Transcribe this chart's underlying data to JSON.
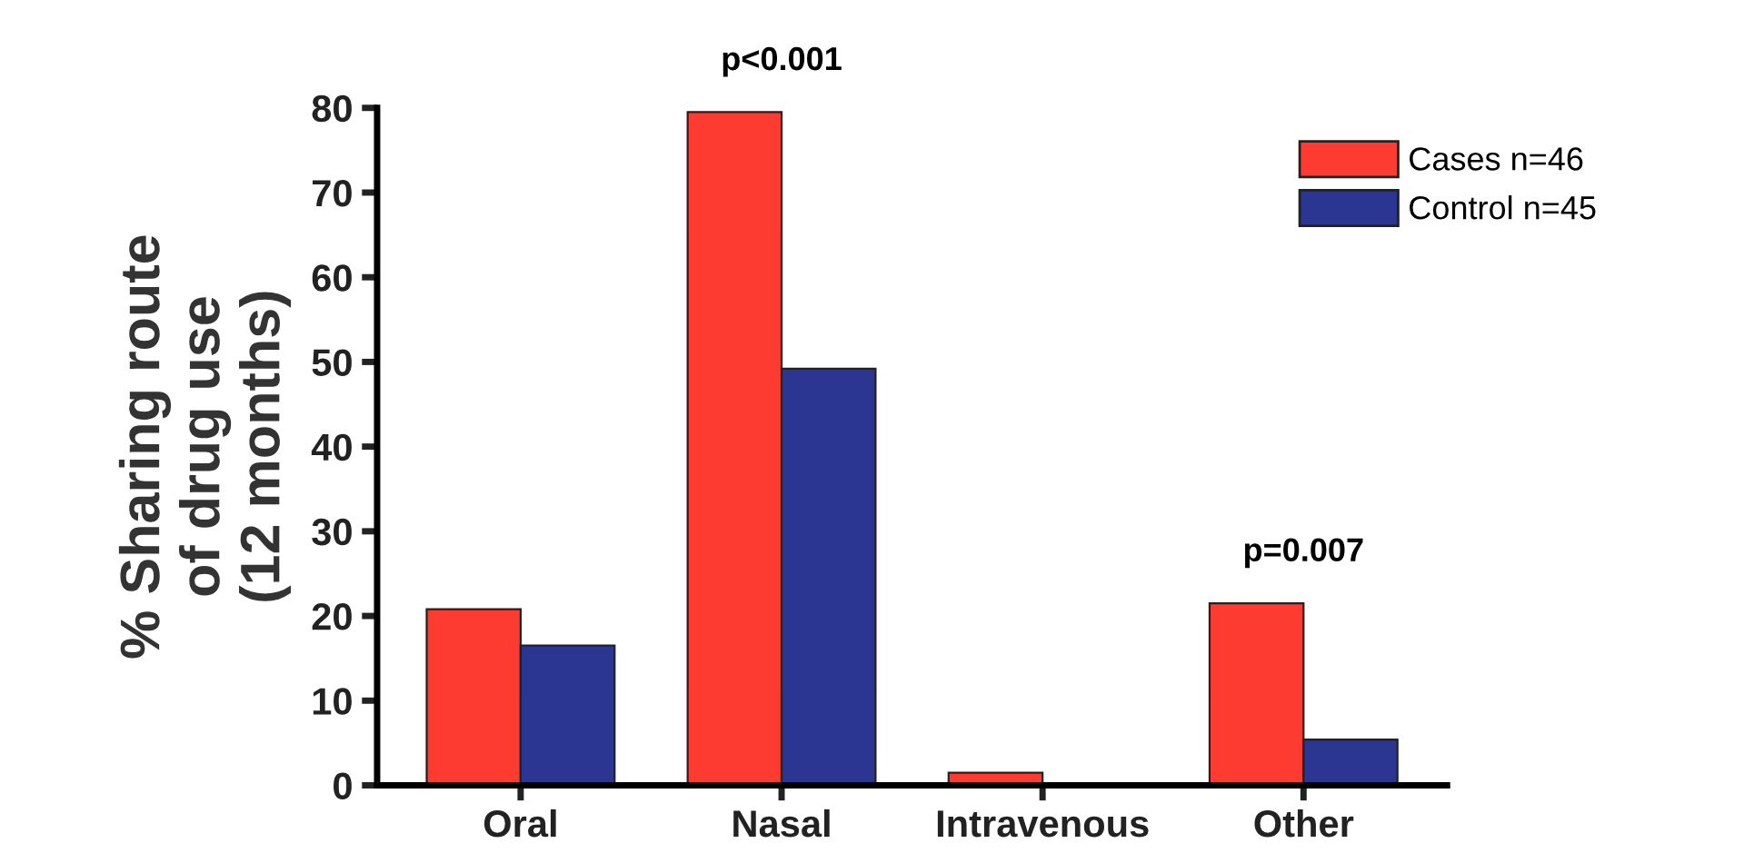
{
  "chart_data": {
    "type": "bar",
    "ylabel": "% Sharing route\nof drug use\n(12 months)",
    "categories": [
      "Oral",
      "Nasal",
      "Intravenous",
      "Other"
    ],
    "series": [
      {
        "name": "Cases n=46",
        "color": "#fe3b30",
        "values": [
          20.8,
          79.5,
          1.5,
          21.5
        ]
      },
      {
        "name": "Control n=45",
        "color": "#2b3592",
        "values": [
          16.5,
          49.2,
          null,
          5.4
        ]
      }
    ],
    "ylim": [
      0,
      80
    ],
    "yticks": [
      0,
      10,
      20,
      30,
      40,
      50,
      60,
      70,
      80
    ],
    "grid": false,
    "legend": "top right",
    "annotations": [
      {
        "text": "p<0.001",
        "x": "Nasal",
        "y": 79.5
      },
      {
        "text": "p=0.007",
        "x": "Other",
        "y": 21.5
      }
    ]
  }
}
